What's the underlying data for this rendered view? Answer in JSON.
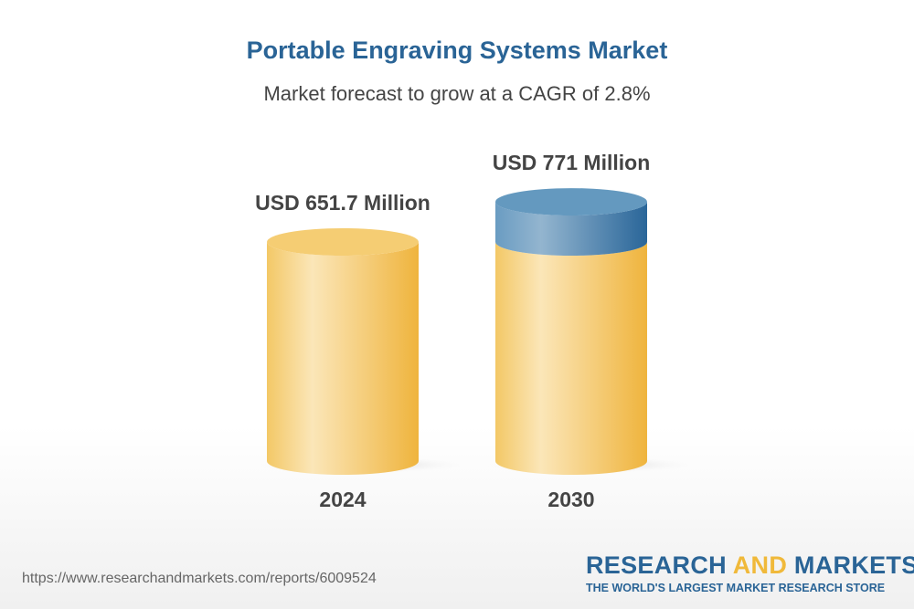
{
  "header": {
    "title": "Portable Engraving Systems Market",
    "subtitle": "Market forecast to grow at a CAGR of 2.8%"
  },
  "chart_data": {
    "type": "bar",
    "style": "3d-cylinder",
    "categories": [
      "2024",
      "2030"
    ],
    "values": [
      651.7,
      771
    ],
    "data_labels": [
      "USD 651.7 Million",
      "USD 771 Million"
    ],
    "unit": "USD Million",
    "cagr": "2.8%",
    "colors": {
      "base": "#f2c25a",
      "growth": "#4f86b4"
    }
  },
  "footer": {
    "url": "https://www.researchandmarkets.com/reports/6009524",
    "logo": {
      "part1": "RESEARCH ",
      "part2": "AND",
      "part3": " MARKETS",
      "tagline": "THE WORLD'S LARGEST MARKET RESEARCH STORE"
    }
  }
}
